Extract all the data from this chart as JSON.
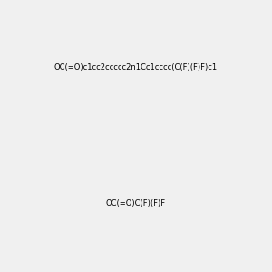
{
  "smiles_top": "OC(=O)c1cc2ccccc2n1Cc1cccc(C(F)(F)F)c1",
  "smiles_bottom": "OC(=O)C(F)(F)F",
  "bg_color": "#f0f0f0",
  "bond_color_default": "#000000",
  "N_color": "#0000ff",
  "O_color": "#ff0000",
  "F_color": "#ff00ff",
  "H_color": "#4a9090",
  "figsize": [
    3.0,
    3.0
  ],
  "dpi": 100
}
